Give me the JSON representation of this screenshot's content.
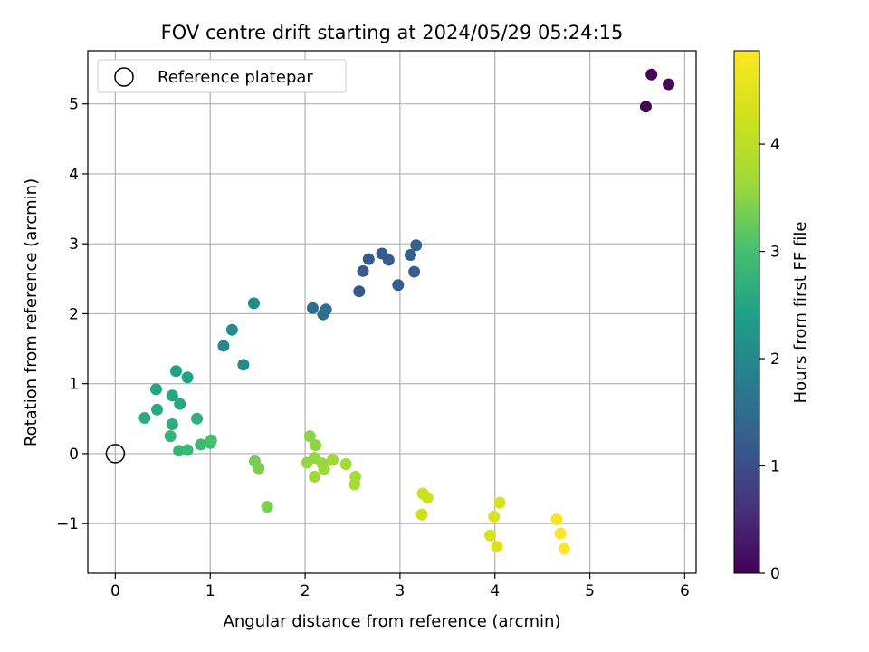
{
  "chart_data": {
    "type": "scatter",
    "title": "FOV centre drift starting at 2024/05/29 05:24:15",
    "xlabel": "Angular distance from reference (arcmin)",
    "ylabel": "Rotation from reference (arcmin)",
    "xlim": [
      -0.29,
      6.12
    ],
    "ylim": [
      -1.71,
      5.76
    ],
    "xticks": [
      0,
      1,
      2,
      3,
      4,
      5,
      6
    ],
    "yticks": [
      -1,
      0,
      1,
      2,
      3,
      4,
      5
    ],
    "grid": true,
    "legend": {
      "placement": "top-left",
      "entries": [
        "Reference platepar"
      ]
    },
    "reference_point": {
      "x": 0,
      "y": 0
    },
    "colorbar": {
      "label": "Hours from first FF file",
      "colormap": "viridis",
      "range": [
        0,
        4.87
      ],
      "ticks": [
        0,
        1,
        2,
        3,
        4
      ]
    },
    "points": [
      {
        "x": 5.59,
        "y": 4.96,
        "c": 0.0
      },
      {
        "x": 5.65,
        "y": 5.42,
        "c": 0.05
      },
      {
        "x": 5.83,
        "y": 5.28,
        "c": 0.1
      },
      {
        "x": 2.57,
        "y": 2.32,
        "c": 1.15
      },
      {
        "x": 2.61,
        "y": 2.61,
        "c": 1.17
      },
      {
        "x": 2.67,
        "y": 2.78,
        "c": 1.18
      },
      {
        "x": 2.81,
        "y": 2.86,
        "c": 1.2
      },
      {
        "x": 2.88,
        "y": 2.77,
        "c": 1.22
      },
      {
        "x": 2.98,
        "y": 2.41,
        "c": 1.25
      },
      {
        "x": 3.11,
        "y": 2.84,
        "c": 1.27
      },
      {
        "x": 3.15,
        "y": 2.6,
        "c": 1.29
      },
      {
        "x": 3.17,
        "y": 2.98,
        "c": 1.31
      },
      {
        "x": 2.08,
        "y": 2.08,
        "c": 1.55
      },
      {
        "x": 2.19,
        "y": 1.99,
        "c": 1.57
      },
      {
        "x": 2.22,
        "y": 2.06,
        "c": 1.59
      },
      {
        "x": 1.14,
        "y": 1.54,
        "c": 2.0
      },
      {
        "x": 1.23,
        "y": 1.77,
        "c": 2.03
      },
      {
        "x": 1.35,
        "y": 1.27,
        "c": 2.05
      },
      {
        "x": 1.46,
        "y": 2.15,
        "c": 2.08
      },
      {
        "x": 0.64,
        "y": 1.18,
        "c": 2.45
      },
      {
        "x": 0.76,
        "y": 1.09,
        "c": 2.47
      },
      {
        "x": 0.43,
        "y": 0.92,
        "c": 2.5
      },
      {
        "x": 0.6,
        "y": 0.83,
        "c": 2.52
      },
      {
        "x": 0.68,
        "y": 0.71,
        "c": 2.55
      },
      {
        "x": 0.44,
        "y": 0.63,
        "c": 2.58
      },
      {
        "x": 0.31,
        "y": 0.51,
        "c": 2.61
      },
      {
        "x": 0.6,
        "y": 0.42,
        "c": 2.65
      },
      {
        "x": 0.86,
        "y": 0.5,
        "c": 2.7
      },
      {
        "x": 0.58,
        "y": 0.25,
        "c": 2.75
      },
      {
        "x": 0.67,
        "y": 0.04,
        "c": 2.8
      },
      {
        "x": 0.76,
        "y": 0.05,
        "c": 2.85
      },
      {
        "x": 0.9,
        "y": 0.13,
        "c": 2.9
      },
      {
        "x": 1.0,
        "y": 0.15,
        "c": 2.95
      },
      {
        "x": 1.01,
        "y": 0.19,
        "c": 3.0
      },
      {
        "x": 1.47,
        "y": -0.11,
        "c": 3.35
      },
      {
        "x": 1.51,
        "y": -0.21,
        "c": 3.38
      },
      {
        "x": 1.6,
        "y": -0.76,
        "c": 3.4
      },
      {
        "x": 2.05,
        "y": 0.25,
        "c": 3.5
      },
      {
        "x": 2.11,
        "y": 0.12,
        "c": 3.52
      },
      {
        "x": 2.02,
        "y": -0.13,
        "c": 3.55
      },
      {
        "x": 2.1,
        "y": -0.06,
        "c": 3.57
      },
      {
        "x": 2.18,
        "y": -0.14,
        "c": 3.6
      },
      {
        "x": 2.2,
        "y": -0.22,
        "c": 3.62
      },
      {
        "x": 2.29,
        "y": -0.09,
        "c": 3.65
      },
      {
        "x": 2.1,
        "y": -0.33,
        "c": 3.67
      },
      {
        "x": 2.43,
        "y": -0.15,
        "c": 3.7
      },
      {
        "x": 2.53,
        "y": -0.33,
        "c": 3.72
      },
      {
        "x": 2.52,
        "y": -0.44,
        "c": 3.75
      },
      {
        "x": 3.24,
        "y": -0.57,
        "c": 4.2
      },
      {
        "x": 3.29,
        "y": -0.63,
        "c": 4.22
      },
      {
        "x": 3.23,
        "y": -0.87,
        "c": 4.25
      },
      {
        "x": 4.05,
        "y": -0.7,
        "c": 4.35
      },
      {
        "x": 3.99,
        "y": -0.9,
        "c": 4.38
      },
      {
        "x": 3.95,
        "y": -1.17,
        "c": 4.4
      },
      {
        "x": 4.02,
        "y": -1.33,
        "c": 4.42
      },
      {
        "x": 4.65,
        "y": -0.94,
        "c": 4.8
      },
      {
        "x": 4.69,
        "y": -1.14,
        "c": 4.83
      },
      {
        "x": 4.73,
        "y": -1.36,
        "c": 4.87
      }
    ]
  }
}
